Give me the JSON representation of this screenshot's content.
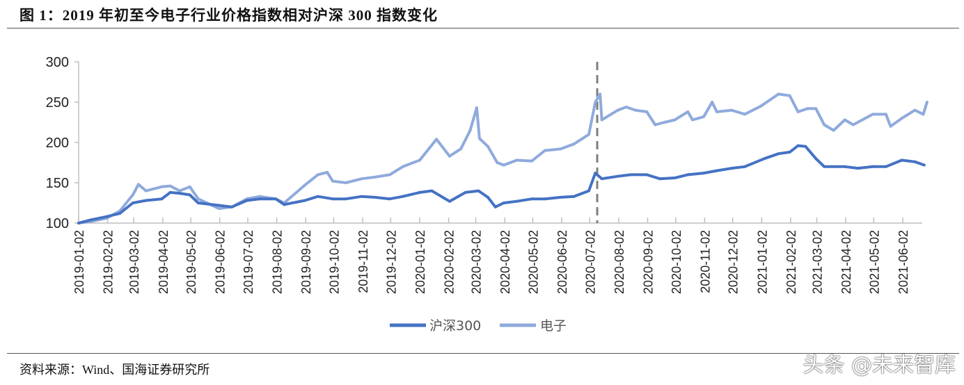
{
  "title": "图 1：2019 年初至今电子行业价格指数相对沪深 300 指数变化",
  "source": "资料来源：Wind、国海证券研究所",
  "watermark": "头条 @未来智库",
  "chart_data": {
    "type": "line",
    "title": "",
    "xlabel": "",
    "ylabel": "",
    "ylim": [
      100,
      300
    ],
    "yticks": [
      "100",
      "150",
      "200",
      "250",
      "300"
    ],
    "xticks": [
      "2019-01-02",
      "2019-02-02",
      "2019-03-02",
      "2019-04-02",
      "2019-05-02",
      "2019-06-02",
      "2019-07-02",
      "2019-08-02",
      "2019-09-02",
      "2019-10-02",
      "2019-11-02",
      "2019-12-02",
      "2020-01-02",
      "2020-02-02",
      "2020-03-02",
      "2020-04-02",
      "2020-05-02",
      "2020-06-02",
      "2020-07-02",
      "2020-08-02",
      "2020-09-02",
      "2020-10-02",
      "2020-11-02",
      "2020-12-02",
      "2021-01-02",
      "2021-02-02",
      "2021-03-02",
      "2021-04-02",
      "2021-05-02",
      "2021-06-02"
    ],
    "grid": false,
    "legend": "bottom",
    "vertical_marker": {
      "date": "2020-07-10",
      "style": "dashed",
      "color": "#7f7f7f"
    },
    "series": [
      {
        "name": "沪深300",
        "color": "#4472c4",
        "x": [
          "2019-01-02",
          "2019-01-15",
          "2019-02-01",
          "2019-02-15",
          "2019-03-01",
          "2019-03-15",
          "2019-04-01",
          "2019-04-10",
          "2019-04-20",
          "2019-05-01",
          "2019-05-10",
          "2019-06-01",
          "2019-06-15",
          "2019-07-01",
          "2019-07-15",
          "2019-08-01",
          "2019-08-10",
          "2019-09-01",
          "2019-09-15",
          "2019-10-01",
          "2019-10-15",
          "2019-11-01",
          "2019-11-15",
          "2019-12-01",
          "2019-12-15",
          "2020-01-02",
          "2020-01-15",
          "2020-02-03",
          "2020-02-20",
          "2020-03-05",
          "2020-03-15",
          "2020-03-23",
          "2020-04-01",
          "2020-04-15",
          "2020-05-01",
          "2020-05-15",
          "2020-06-01",
          "2020-06-15",
          "2020-07-01",
          "2020-07-08",
          "2020-07-15",
          "2020-08-01",
          "2020-08-15",
          "2020-09-01",
          "2020-09-15",
          "2020-10-01",
          "2020-10-15",
          "2020-11-01",
          "2020-11-15",
          "2020-12-01",
          "2020-12-15",
          "2021-01-05",
          "2021-01-20",
          "2021-02-01",
          "2021-02-10",
          "2021-02-18",
          "2021-03-01",
          "2021-03-10",
          "2021-04-01",
          "2021-04-15",
          "2021-05-01",
          "2021-05-15",
          "2021-06-01",
          "2021-06-15",
          "2021-06-25"
        ],
        "values": [
          100,
          104,
          108,
          112,
          125,
          128,
          130,
          138,
          137,
          135,
          125,
          122,
          120,
          128,
          130,
          130,
          123,
          128,
          133,
          130,
          130,
          133,
          132,
          130,
          133,
          138,
          140,
          127,
          138,
          140,
          132,
          120,
          125,
          127,
          130,
          130,
          132,
          133,
          140,
          162,
          155,
          158,
          160,
          160,
          155,
          156,
          160,
          162,
          165,
          168,
          170,
          180,
          186,
          188,
          196,
          195,
          180,
          170,
          170,
          168,
          170,
          170,
          178,
          176,
          172
        ]
      },
      {
        "name": "电子",
        "color": "#8faadc",
        "x": [
          "2019-01-02",
          "2019-01-15",
          "2019-02-01",
          "2019-02-15",
          "2019-03-01",
          "2019-03-07",
          "2019-03-15",
          "2019-04-01",
          "2019-04-10",
          "2019-04-20",
          "2019-05-01",
          "2019-05-10",
          "2019-06-01",
          "2019-06-15",
          "2019-07-01",
          "2019-07-15",
          "2019-08-01",
          "2019-08-10",
          "2019-09-01",
          "2019-09-15",
          "2019-09-25",
          "2019-10-01",
          "2019-10-15",
          "2019-11-01",
          "2019-11-15",
          "2019-12-01",
          "2019-12-15",
          "2020-01-02",
          "2020-01-20",
          "2020-02-03",
          "2020-02-15",
          "2020-02-25",
          "2020-03-03",
          "2020-03-06",
          "2020-03-15",
          "2020-03-25",
          "2020-04-01",
          "2020-04-15",
          "2020-05-01",
          "2020-05-15",
          "2020-06-01",
          "2020-06-15",
          "2020-07-01",
          "2020-07-08",
          "2020-07-13",
          "2020-07-15",
          "2020-08-01",
          "2020-08-10",
          "2020-08-20",
          "2020-09-01",
          "2020-09-10",
          "2020-09-20",
          "2020-10-01",
          "2020-10-15",
          "2020-10-20",
          "2020-11-01",
          "2020-11-10",
          "2020-11-15",
          "2020-12-01",
          "2020-12-15",
          "2021-01-01",
          "2021-01-20",
          "2021-02-01",
          "2021-02-10",
          "2021-02-20",
          "2021-03-01",
          "2021-03-10",
          "2021-03-20",
          "2021-04-01",
          "2021-04-10",
          "2021-05-01",
          "2021-05-15",
          "2021-05-20",
          "2021-06-01",
          "2021-06-15",
          "2021-06-24",
          "2021-06-28"
        ],
        "values": [
          100,
          102,
          106,
          115,
          135,
          148,
          140,
          145,
          146,
          140,
          145,
          130,
          118,
          120,
          130,
          133,
          130,
          125,
          147,
          160,
          163,
          152,
          150,
          155,
          157,
          160,
          170,
          178,
          204,
          183,
          192,
          215,
          243,
          205,
          195,
          175,
          172,
          178,
          177,
          190,
          192,
          198,
          210,
          250,
          260,
          228,
          240,
          244,
          240,
          238,
          222,
          225,
          228,
          238,
          228,
          232,
          250,
          238,
          240,
          235,
          245,
          260,
          258,
          238,
          242,
          242,
          222,
          215,
          228,
          222,
          235,
          235,
          220,
          230,
          240,
          235,
          250
        ]
      }
    ]
  }
}
